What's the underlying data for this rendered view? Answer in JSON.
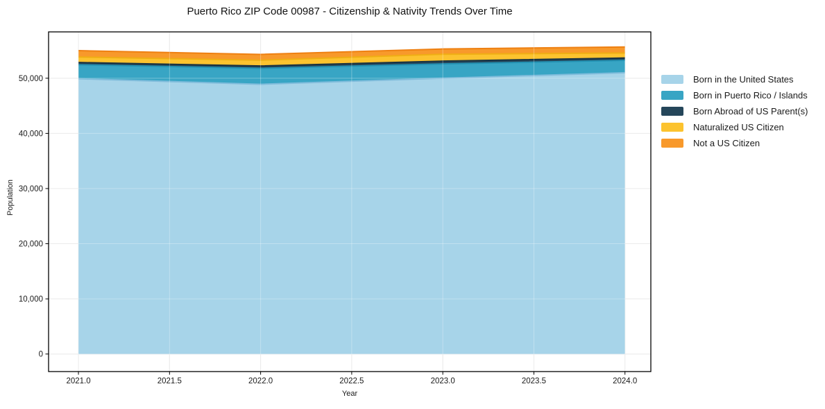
{
  "figure": {
    "title": "Puerto Rico ZIP Code 00987 - Citizenship & Nativity Trends Over Time"
  },
  "chart_data": {
    "type": "area",
    "stacked": true,
    "title": "Puerto Rico ZIP Code 00987 - Citizenship & Nativity Trends Over Time",
    "xlabel": "Year",
    "ylabel": "Population",
    "x": [
      2021,
      2022,
      2023,
      2024
    ],
    "series": [
      {
        "name": "Born in the United States",
        "values": [
          49900,
          48900,
          50000,
          51000
        ],
        "color": "#a7d4e9",
        "edge": "#7fbcdb"
      },
      {
        "name": "Born in Puerto Rico / Islands",
        "values": [
          2550,
          2900,
          2600,
          2250
        ],
        "color": "#38a5c4",
        "edge": "#2391b2"
      },
      {
        "name": "Born Abroad of US Parent(s)",
        "values": [
          400,
          420,
          500,
          420
        ],
        "color": "#25465a",
        "edge": "#1a3342"
      },
      {
        "name": "Naturalized US Citizen",
        "values": [
          1000,
          1050,
          1250,
          900
        ],
        "color": "#fcc32f",
        "edge": "#efae14"
      },
      {
        "name": "Not a US Citizen",
        "values": [
          1150,
          1050,
          950,
          1100
        ],
        "color": "#f8992b",
        "edge": "#ee8012"
      }
    ],
    "xticks": {
      "values": [
        2021.0,
        2021.5,
        2022.0,
        2022.5,
        2023.0,
        2023.5,
        2024.0
      ],
      "labels": [
        "2021.0",
        "2021.5",
        "2022.0",
        "2022.5",
        "2023.0",
        "2023.5",
        "2024.0"
      ]
    },
    "yticks": {
      "values": [
        0,
        10000,
        20000,
        30000,
        40000,
        50000
      ],
      "labels": [
        "0",
        "10,000",
        "20,000",
        "30,000",
        "40,000",
        "50,000"
      ]
    },
    "xlim": [
      2020.836,
      2024.142
    ],
    "ylim": [
      -3180,
      58400
    ],
    "grid": true,
    "legend_position": "right-outside"
  },
  "colors": {
    "grid": "#e3e3e3",
    "grid_overlay": "rgba(255,255,255,0.3)",
    "spine": "#000000",
    "background": "#ffffff"
  }
}
